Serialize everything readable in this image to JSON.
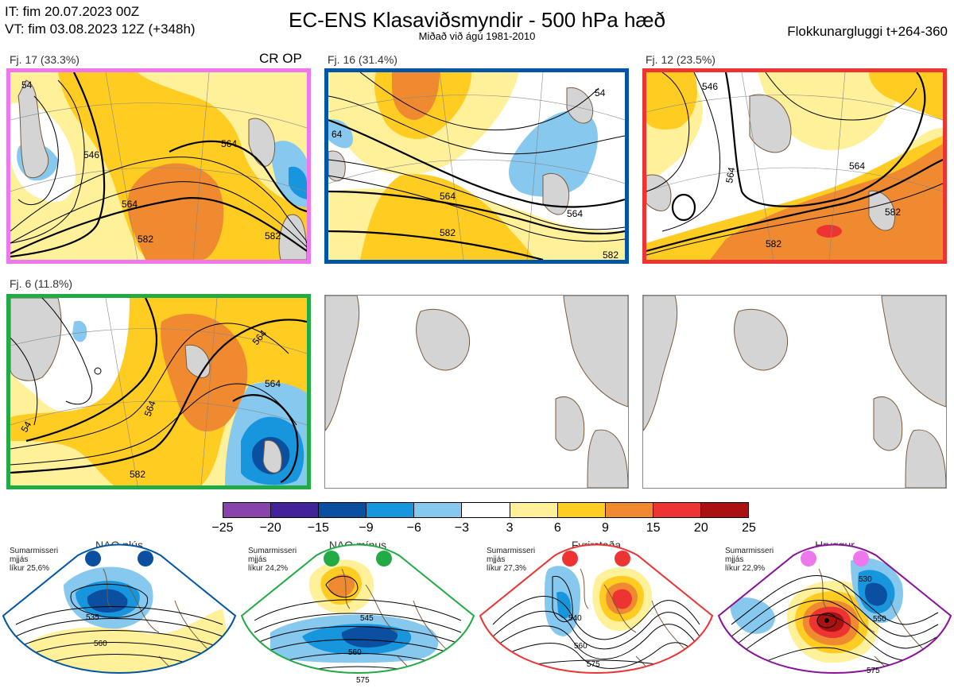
{
  "header": {
    "it_line": "IT: fim 20.07.2023 00Z",
    "vt_line": "VT: fim 03.08.2023 12Z  (+348h)",
    "title": "EC-ENS Klasaviðsmyndir - 500 hPa hæð",
    "subtitle": "Miðað við ágú 1981-2010",
    "window": "Flokkunargluggi t+264-360"
  },
  "clusters": [
    {
      "label": "Fj. 17 (33.3%)",
      "border_color": "#ee77ee",
      "op_tag": "CR OP",
      "contour_labels": [
        "546",
        "564",
        "564",
        "582",
        "582",
        "54"
      ]
    },
    {
      "label": "Fj. 16 (31.4%)",
      "border_color": "#0055a5",
      "contour_labels": [
        "564",
        "564",
        "582",
        "582",
        "54",
        "64"
      ]
    },
    {
      "label": "Fj. 12 (23.5%)",
      "border_color": "#ee3333",
      "contour_labels": [
        "546",
        "564",
        "564",
        "582",
        "582"
      ]
    },
    {
      "label": "Fj. 6 (11.8%)",
      "border_color": "#22aa44",
      "contour_labels": [
        "564",
        "564",
        "564",
        "582",
        "54"
      ]
    }
  ],
  "colorbar": {
    "ticks": [
      "−25",
      "−20",
      "−15",
      "−9",
      "−6",
      "−3",
      "3",
      "6",
      "9",
      "15",
      "20",
      "25"
    ],
    "colors": [
      "#8844aa",
      "#442299",
      "#0a4fa0",
      "#1896dd",
      "#86c8ee",
      "#ffffff",
      "#fff09a",
      "#ffcc22",
      "#f08a30",
      "#ee3333",
      "#aa1111"
    ]
  },
  "regimes": [
    {
      "name": "NAO plús",
      "season": "Sumarmisseri",
      "subtitle": "mjjás",
      "probability": "líkur 25,6%",
      "color": "#0055a5",
      "dot_color": "#0a4fa0",
      "contour_labels": [
        "535",
        "560"
      ]
    },
    {
      "name": "NAO mínus",
      "season": "Sumarmisseri",
      "subtitle": "mjjás",
      "probability": "líkur 24,2%",
      "color": "#22aa44",
      "dot_color": "#22aa44",
      "contour_labels": [
        "545",
        "560",
        "575"
      ]
    },
    {
      "name": "Fyrirstaða",
      "season": "Sumarmisseri",
      "subtitle": "mjjás",
      "probability": "líkur 27,3%",
      "color": "#ee3333",
      "dot_color": "#ee3333",
      "contour_labels": [
        "540",
        "560",
        "575"
      ]
    },
    {
      "name": "Hryggur",
      "season": "Sumarmisseri",
      "subtitle": "mjjás",
      "probability": "líkur 22,9%",
      "color": "#881199",
      "dot_color": "#ee77ee",
      "contour_labels": [
        "530",
        "550",
        "575"
      ]
    }
  ]
}
